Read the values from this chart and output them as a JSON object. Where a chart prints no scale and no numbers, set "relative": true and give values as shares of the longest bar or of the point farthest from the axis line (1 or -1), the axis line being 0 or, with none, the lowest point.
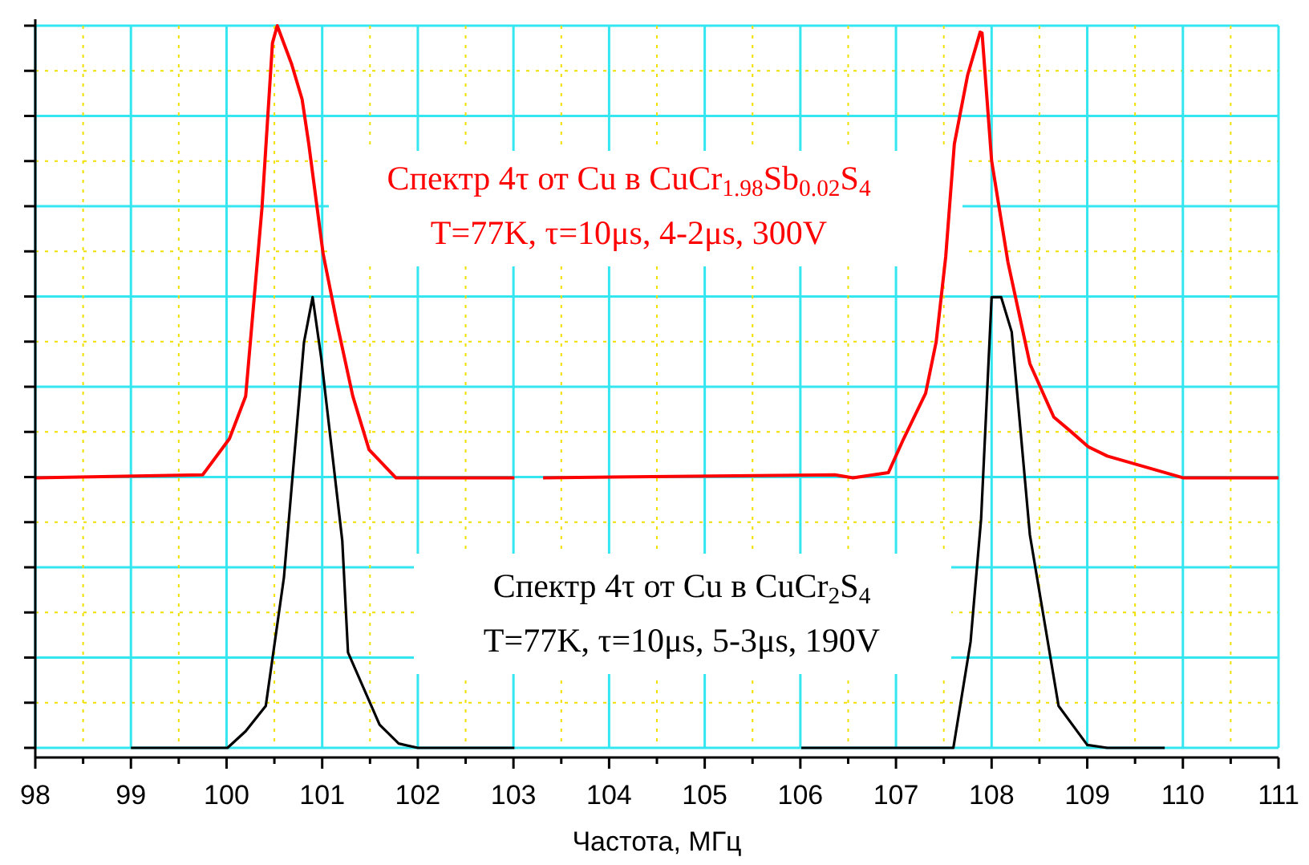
{
  "chart_data": {
    "type": "line",
    "relative": true,
    "xlabel": "Частота, МГц",
    "xlim": [
      98,
      111
    ],
    "xticks": [
      98,
      {
        "value": 98.5,
        "label": null
      },
      99,
      {
        "value": 99.5,
        "label": null
      },
      100,
      {
        "value": 100.5,
        "label": null
      },
      101,
      {
        "value": 101.5,
        "label": null
      },
      102,
      {
        "value": 102.5,
        "label": null
      },
      103,
      {
        "value": 103.5,
        "label": null
      },
      104,
      {
        "value": 104.5,
        "label": null
      },
      105,
      {
        "value": 105.5,
        "label": null
      },
      106,
      {
        "value": 106.5,
        "label": null
      },
      107,
      {
        "value": 107.5,
        "label": null
      },
      108,
      {
        "value": 108.5,
        "label": null
      },
      109,
      {
        "value": 109.5,
        "label": null
      },
      110,
      {
        "value": 110.5,
        "label": null
      },
      111
    ],
    "grid": true,
    "line_style": "solid",
    "annotations": [
      "Спектр 4τ от Cu в CuCr$_{1.98}$Sb$_{0.02}$S$_{4}$",
      "T=77K, τ=10μs, 4-2μs, 300V",
      "Спектр 4τ от Cu в CuCr$_{2}$S$_{4}$",
      "T=77K, τ=10μs, 5-3μs, 190V"
    ],
    "series": [
      {
        "color": "#ff0000",
        "x": [
          98.0,
          99.75,
          100.03,
          100.2,
          100.37,
          100.48,
          100.53,
          100.68,
          100.79,
          100.86,
          101.01,
          101.15,
          101.32,
          101.49,
          101.77,
          103.01,
          103.1,
          103.31,
          106.36,
          106.55,
          106.92,
          107.08,
          107.31,
          107.42,
          107.52,
          107.61,
          107.75,
          107.88,
          107.9,
          108.0,
          108.17,
          108.4,
          108.65,
          108.82,
          109.01,
          109.21,
          110.0,
          111.0
        ],
        "values": [
          0.374,
          0.378,
          0.428,
          0.487,
          0.747,
          0.976,
          1.0,
          0.947,
          0.898,
          0.836,
          0.684,
          0.591,
          0.487,
          0.413,
          0.374,
          0.374,
          null,
          0.374,
          0.378,
          0.374,
          0.381,
          0.428,
          0.491,
          0.562,
          0.68,
          0.836,
          0.932,
          0.991,
          0.99,
          0.813,
          0.673,
          0.532,
          0.458,
          0.439,
          0.417,
          0.404,
          0.374,
          0.374
        ]
      },
      {
        "color": "#000000",
        "x": [
          99.0,
          100.01,
          100.2,
          100.41,
          100.6,
          100.81,
          100.9,
          100.99,
          101.21,
          101.27,
          101.6,
          101.8,
          102.0,
          103.01,
          104.5,
          106.01,
          107.6,
          107.78,
          107.89,
          108.0,
          108.1,
          108.21,
          108.4,
          108.7,
          109.0,
          109.21,
          109.81
        ],
        "values": [
          0,
          0,
          0.023,
          0.058,
          0.236,
          0.562,
          0.624,
          0.54,
          0.287,
          0.132,
          0.032,
          0.006,
          0,
          0,
          null,
          0,
          0,
          0.147,
          0.317,
          0.624,
          0.624,
          0.576,
          0.295,
          0.058,
          0.004,
          0,
          0
        ]
      }
    ]
  }
}
